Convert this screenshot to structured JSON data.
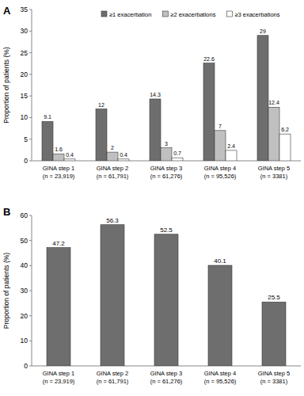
{
  "chart_data": [
    {
      "type": "bar",
      "title": "A",
      "y_label": "Proportion of patients (%)",
      "categories": [
        "GINA step 1\n(n = 23,919)",
        "GINA step 2\n(n = 61,791)",
        "GINA step 3\n(n = 61,276)",
        "GINA step 4\n(n = 95,526)",
        "GINA step 5\n(n = 3381)"
      ],
      "series": [
        {
          "name": "≥1 exacerbation",
          "color": "#6e6e6e",
          "values": [
            9.1,
            12.0,
            14.3,
            22.6,
            29.0
          ]
        },
        {
          "name": "≥2 exacerbations",
          "color": "#c0c0c0",
          "values": [
            1.6,
            2.0,
            3.0,
            7.0,
            12.4
          ]
        },
        {
          "name": "≥3 exacerbations",
          "color": "#ffffff",
          "values": [
            0.4,
            0.4,
            0.7,
            2.4,
            6.2
          ]
        }
      ],
      "value_labels": null,
      "ylim": [
        0,
        35
      ],
      "yticks": [
        0,
        5,
        10,
        15,
        20,
        25,
        30,
        35
      ],
      "grid": false,
      "legend": "top-right",
      "data_labels": true
    },
    {
      "type": "bar",
      "title": "B",
      "y_label": "Proportion of patients (%)",
      "categories": [
        "GINA step 1\n(n = 23,919)",
        "GINA step 2\n(n = 61,791)",
        "GINA step 3\n(n = 61,276)",
        "GINA step 4\n(n = 95,526)",
        "GINA step 5\n(n = 3381)"
      ],
      "values": [
        47.2,
        56.3,
        52.5,
        40.1,
        25.5
      ],
      "value_labels": [
        "47.2",
        "56.3",
        "52.5",
        "40.1",
        "25.5"
      ],
      "color": "#6e6e6e",
      "ylim": [
        0,
        60
      ],
      "yticks": [
        0,
        10,
        20,
        30,
        40,
        50,
        60
      ],
      "grid": false,
      "data_labels": true
    }
  ]
}
